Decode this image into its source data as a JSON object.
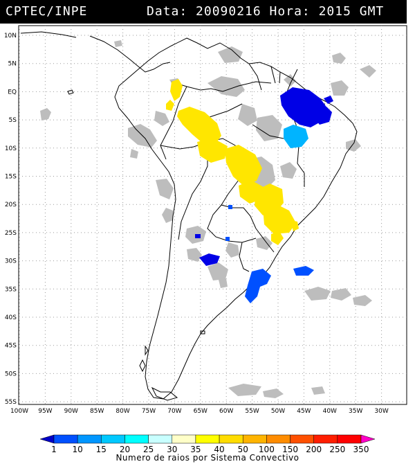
{
  "header": {
    "title": "CPTEC/INPE",
    "date_label": "Data: 20090216 Hora: 2015 GMT"
  },
  "map": {
    "lat_labels": [
      "10N",
      "5N",
      "EQ",
      "5S",
      "10S",
      "15S",
      "20S",
      "25S",
      "30S",
      "35S",
      "40S",
      "45S",
      "50S",
      "55S"
    ],
    "lon_labels": [
      "100W",
      "95W",
      "90W",
      "85W",
      "80W",
      "75W",
      "70W",
      "65W",
      "60W",
      "55W",
      "50W",
      "45W",
      "40W",
      "35W",
      "30W"
    ],
    "colors": {
      "coast": "#000000",
      "cloud": "#b8b8b8",
      "grid": "#888888"
    }
  },
  "legend": {
    "labels": [
      "1",
      "10",
      "15",
      "20",
      "25",
      "30",
      "35",
      "40",
      "50",
      "100",
      "150",
      "200",
      "250",
      "350"
    ],
    "colors": [
      "#0000c8",
      "#0050ff",
      "#0096ff",
      "#00c8ff",
      "#00ffff",
      "#c8ffff",
      "#ffffc8",
      "#ffff00",
      "#ffdc00",
      "#ffb400",
      "#ff8c00",
      "#ff5000",
      "#ff1e00",
      "#ff0000",
      "#ff00c8"
    ],
    "caption": "Numero de raios por Sistema Convectivo"
  }
}
